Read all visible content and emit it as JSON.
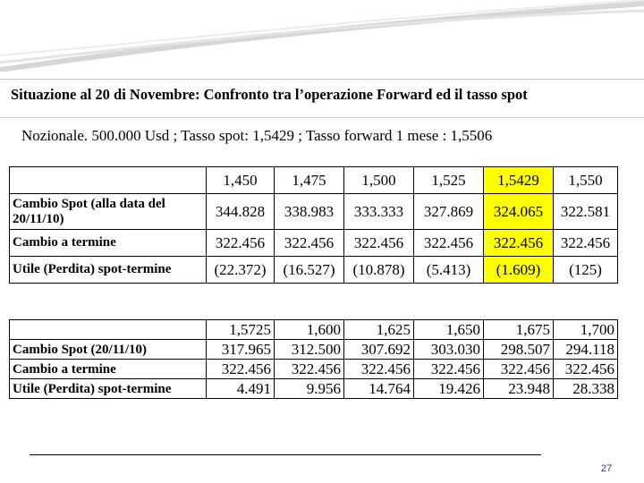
{
  "title": "Situazione al 20 di Novembre: Confronto tra l’operazione Forward ed il tasso spot",
  "subtitle": "Nozionale. 500.000 Usd ;  Tasso spot: 1,5429 ; Tasso forward 1 mese : 1,5506",
  "colors": {
    "highlight": "#ffff00",
    "page_number": "#1f3b8a"
  },
  "table1": {
    "header": [
      "1,450",
      "1,475",
      "1,500",
      "1,525",
      "1,5429",
      "1,550"
    ],
    "highlight_column": 4,
    "rows": [
      {
        "label": "Cambio Spot (alla data del 20/11/10)",
        "values": [
          "344.828",
          "338.983",
          "333.333",
          "327.869",
          "324.065",
          "322.581"
        ]
      },
      {
        "label": "Cambio a termine",
        "values": [
          "322.456",
          "322.456",
          "322.456",
          "322.456",
          "322.456",
          "322.456"
        ]
      },
      {
        "label": "Utile (Perdita) spot-termine",
        "values": [
          "(22.372)",
          "(16.527)",
          "(10.878)",
          "(5.413)",
          "(1.609)",
          "(125)"
        ]
      }
    ]
  },
  "table2": {
    "header": [
      "1,5725",
      "1,600",
      "1,625",
      "1,650",
      "1,675",
      "1,700"
    ],
    "rows": [
      {
        "label": "Cambio Spot (20/11/10)",
        "values": [
          "317.965",
          "312.500",
          "307.692",
          "303.030",
          "298.507",
          "294.118"
        ]
      },
      {
        "label": "Cambio a termine",
        "values": [
          "322.456",
          "322.456",
          "322.456",
          "322.456",
          "322.456",
          "322.456"
        ]
      },
      {
        "label": "Utile (Perdita) spot-termine",
        "values": [
          "4.491",
          "9.956",
          "14.764",
          "19.426",
          "23.948",
          "28.338"
        ]
      }
    ]
  },
  "page_number": "27"
}
